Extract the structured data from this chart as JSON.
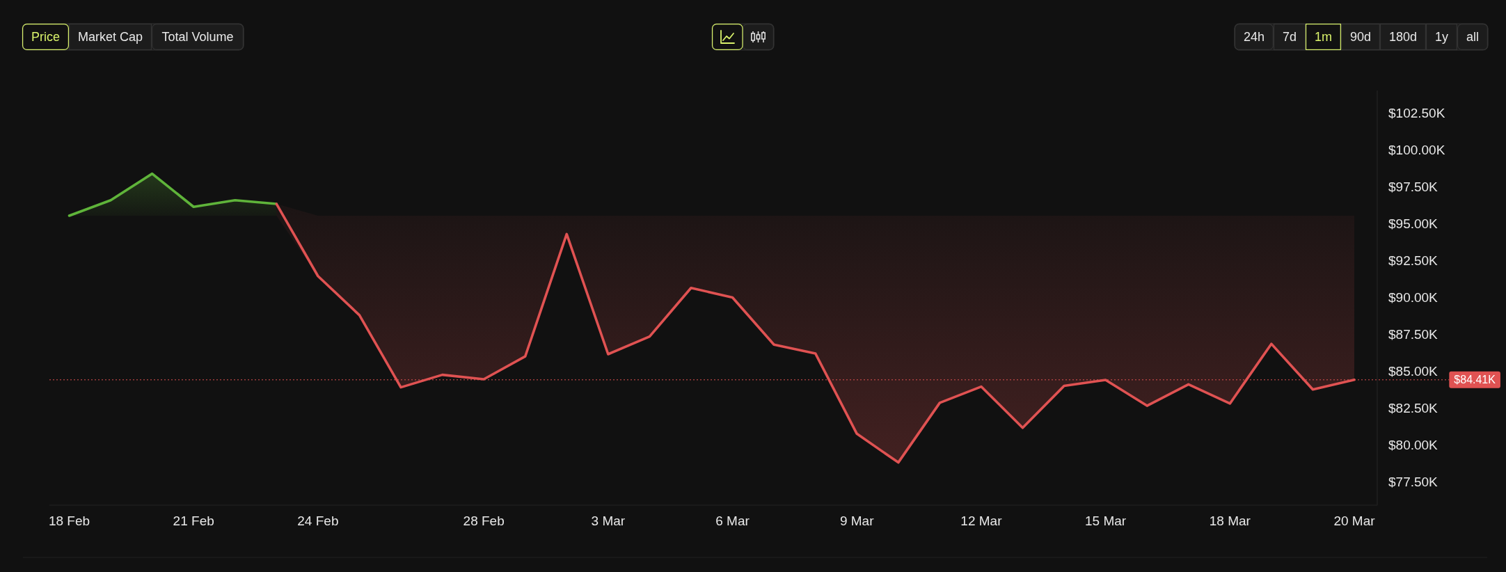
{
  "chart_data": {
    "type": "line",
    "categories": [
      "18 Feb",
      null,
      null,
      "21 Feb",
      null,
      null,
      "24 Feb",
      null,
      null,
      null,
      "28 Feb",
      null,
      null,
      "3 Mar",
      null,
      null,
      "6 Mar",
      null,
      null,
      "9 Mar",
      null,
      null,
      "12 Mar",
      null,
      null,
      "15 Mar",
      null,
      null,
      "18 Mar",
      null,
      null,
      "20 Mar"
    ],
    "series": [
      {
        "color": "#5fb43a",
        "values": [
          95550,
          96600,
          98400,
          96150,
          96600,
          96350,
          null,
          null,
          null,
          null,
          null,
          null,
          null,
          null,
          null,
          null,
          null,
          null,
          null,
          null,
          null,
          null,
          null,
          null,
          null,
          null,
          null,
          null,
          null,
          null,
          null,
          null
        ],
        "lower": [
          95550,
          95550,
          95550,
          95550,
          95550,
          95550,
          null,
          null,
          null,
          null,
          null,
          null,
          null,
          null,
          null,
          null,
          null,
          null,
          null,
          null,
          null,
          null,
          null,
          null,
          null,
          null,
          null,
          null,
          null,
          null,
          null,
          null
        ],
        "upper": [
          95550,
          96600,
          98400,
          96150,
          96600,
          96350,
          null,
          null,
          null,
          null,
          null,
          null,
          null,
          null,
          null,
          null,
          null,
          null,
          null,
          null,
          null,
          null,
          null,
          null,
          null,
          null,
          null,
          null,
          null,
          null,
          null,
          null
        ]
      },
      {
        "color": "#e05252",
        "values": [
          null,
          null,
          null,
          null,
          null,
          96350,
          91450,
          88800,
          83900,
          84750,
          84450,
          86000,
          94300,
          86150,
          87350,
          90650,
          90000,
          86800,
          86200,
          80750,
          78800,
          82850,
          83950,
          81150,
          84000,
          84400,
          82650,
          84100,
          82800,
          86850,
          83750,
          84410
        ],
        "lower": [
          null,
          null,
          null,
          null,
          null,
          95550,
          91450,
          88800,
          83900,
          84750,
          84450,
          86000,
          94300,
          86150,
          87350,
          90650,
          90000,
          86800,
          86200,
          80750,
          78800,
          82850,
          83950,
          81150,
          84000,
          84400,
          82650,
          84100,
          82800,
          86850,
          83750,
          84410
        ],
        "upper": [
          null,
          null,
          null,
          null,
          null,
          96350,
          95550,
          95550,
          95550,
          95550,
          95550,
          95550,
          95550,
          95550,
          95550,
          95550,
          95550,
          95550,
          95550,
          95550,
          95550,
          95550,
          95550,
          95550,
          95550,
          95550,
          95550,
          95550,
          95550,
          95550,
          95550,
          95550
        ]
      }
    ],
    "ylim": [
      75900,
      104050
    ],
    "yticks": [
      {
        "value": 77500,
        "label": "$77.50K"
      },
      {
        "value": 80000,
        "label": "$80.00K"
      },
      {
        "value": 82500,
        "label": "$82.50K"
      },
      {
        "value": 85000,
        "label": "$85.00K"
      },
      {
        "value": 87500,
        "label": "$87.50K"
      },
      {
        "value": 90000,
        "label": "$90.00K"
      },
      {
        "value": 92500,
        "label": "$92.50K"
      },
      {
        "value": 95000,
        "label": "$95.00K"
      },
      {
        "value": 97500,
        "label": "$97.50K"
      },
      {
        "value": 100000,
        "label": "$100.00K"
      },
      {
        "value": 102500,
        "label": "$102.50K"
      }
    ],
    "ref_lines": [
      {
        "axis": "y",
        "value": 84410,
        "label": "$84.41K",
        "color": "#e05252",
        "line_style": "dotted"
      }
    ],
    "annotations": [
      "Price",
      "Market Cap",
      "Total Volume",
      "24h",
      "7d",
      "1m",
      "90d",
      "180d",
      "1y",
      "all"
    ]
  }
}
